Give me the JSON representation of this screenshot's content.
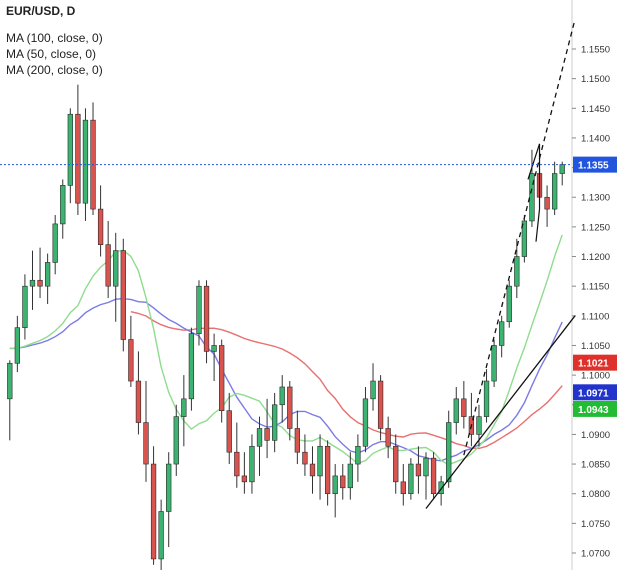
{
  "chart_data": {
    "type": "candlestick",
    "title": "EUR/USD, D",
    "legend": [
      {
        "name": "MA (100, close, 0)"
      },
      {
        "name": "MA (50, close, 0)"
      },
      {
        "name": "MA (200, close, 0)"
      }
    ],
    "ylim": [
      1.067,
      1.159
    ],
    "y_ticks": [
      "1.1550",
      "1.1500",
      "1.1450",
      "1.1400",
      "1.1350",
      "1.1300",
      "1.1250",
      "1.1200",
      "1.1150",
      "1.1100",
      "1.1050",
      "1.1000",
      "1.0950",
      "1.0900",
      "1.0850",
      "1.0800",
      "1.0750",
      "1.0700"
    ],
    "y_tick_values": [
      1.155,
      1.15,
      1.145,
      1.14,
      1.135,
      1.13,
      1.125,
      1.12,
      1.115,
      1.11,
      1.105,
      1.1,
      1.095,
      1.09,
      1.085,
      1.08,
      1.075,
      1.07
    ],
    "price_line": {
      "label": "1.1355",
      "value": 1.1355,
      "color": "#2255dd"
    },
    "ma_badges": [
      {
        "label": "1.1021",
        "value": 1.1021,
        "color": "#e0302c"
      },
      {
        "label": "1.0971",
        "value": 1.0971,
        "color": "#2233cc"
      },
      {
        "label": "1.0943",
        "value": 1.0943,
        "color": "#22bb33"
      }
    ],
    "colors": {
      "up": "#3cb371",
      "down": "#d9534f",
      "ma200": "#e87070",
      "ma100": "#7b7be6",
      "ma50": "#8fdc8f"
    },
    "candles": [
      [
        1.096,
        1.1025,
        1.089,
        1.102
      ],
      [
        1.102,
        1.11,
        1.1005,
        1.108
      ],
      [
        1.108,
        1.117,
        1.106,
        1.115
      ],
      [
        1.115,
        1.121,
        1.111,
        1.116
      ],
      [
        1.116,
        1.1215,
        1.113,
        1.115
      ],
      [
        1.115,
        1.1205,
        1.112,
        1.119
      ],
      [
        1.119,
        1.127,
        1.117,
        1.1255
      ],
      [
        1.1255,
        1.133,
        1.123,
        1.132
      ],
      [
        1.132,
        1.145,
        1.129,
        1.144
      ],
      [
        1.144,
        1.149,
        1.127,
        1.129
      ],
      [
        1.129,
        1.145,
        1.126,
        1.143
      ],
      [
        1.143,
        1.146,
        1.127,
        1.128
      ],
      [
        1.128,
        1.132,
        1.12,
        1.122
      ],
      [
        1.122,
        1.126,
        1.113,
        1.115
      ],
      [
        1.115,
        1.124,
        1.109,
        1.121
      ],
      [
        1.121,
        1.123,
        1.104,
        1.106
      ],
      [
        1.106,
        1.11,
        1.098,
        1.099
      ],
      [
        1.099,
        1.104,
        1.09,
        1.092
      ],
      [
        1.092,
        1.099,
        1.082,
        1.085
      ],
      [
        1.085,
        1.088,
        1.068,
        1.069
      ],
      [
        1.069,
        1.079,
        1.067,
        1.077
      ],
      [
        1.077,
        1.087,
        1.071,
        1.085
      ],
      [
        1.085,
        1.095,
        1.083,
        1.093
      ],
      [
        1.093,
        1.1,
        1.088,
        1.096
      ],
      [
        1.096,
        1.108,
        1.094,
        1.107
      ],
      [
        1.107,
        1.116,
        1.105,
        1.115
      ],
      [
        1.115,
        1.116,
        1.102,
        1.104
      ],
      [
        1.104,
        1.107,
        1.099,
        1.105
      ],
      [
        1.105,
        1.106,
        1.092,
        1.094
      ],
      [
        1.094,
        1.097,
        1.085,
        1.087
      ],
      [
        1.087,
        1.092,
        1.081,
        1.083
      ],
      [
        1.083,
        1.087,
        1.08,
        1.082
      ],
      [
        1.082,
        1.09,
        1.08,
        1.088
      ],
      [
        1.088,
        1.093,
        1.083,
        1.091
      ],
      [
        1.091,
        1.096,
        1.086,
        1.089
      ],
      [
        1.089,
        1.097,
        1.087,
        1.095
      ],
      [
        1.095,
        1.1,
        1.092,
        1.098
      ],
      [
        1.098,
        1.099,
        1.089,
        1.091
      ],
      [
        1.091,
        1.094,
        1.085,
        1.087
      ],
      [
        1.087,
        1.09,
        1.083,
        1.085
      ],
      [
        1.085,
        1.088,
        1.08,
        1.083
      ],
      [
        1.083,
        1.09,
        1.079,
        1.088
      ],
      [
        1.088,
        1.089,
        1.078,
        1.08
      ],
      [
        1.08,
        1.085,
        1.076,
        1.083
      ],
      [
        1.083,
        1.085,
        1.079,
        1.081
      ],
      [
        1.081,
        1.087,
        1.079,
        1.085
      ],
      [
        1.085,
        1.09,
        1.082,
        1.088
      ],
      [
        1.088,
        1.098,
        1.087,
        1.096
      ],
      [
        1.096,
        1.102,
        1.094,
        1.099
      ],
      [
        1.099,
        1.1,
        1.089,
        1.091
      ],
      [
        1.091,
        1.093,
        1.086,
        1.088
      ],
      [
        1.088,
        1.09,
        1.08,
        1.082
      ],
      [
        1.082,
        1.085,
        1.078,
        1.08
      ],
      [
        1.08,
        1.086,
        1.079,
        1.085
      ],
      [
        1.085,
        1.088,
        1.08,
        1.083
      ],
      [
        1.083,
        1.087,
        1.079,
        1.086
      ],
      [
        1.086,
        1.087,
        1.079,
        1.08
      ],
      [
        1.08,
        1.083,
        1.078,
        1.082
      ],
      [
        1.082,
        1.094,
        1.081,
        1.092
      ],
      [
        1.092,
        1.098,
        1.09,
        1.096
      ],
      [
        1.096,
        1.099,
        1.091,
        1.093
      ],
      [
        1.093,
        1.097,
        1.088,
        1.09
      ],
      [
        1.09,
        1.095,
        1.088,
        1.093
      ],
      [
        1.093,
        1.101,
        1.092,
        1.099
      ],
      [
        1.099,
        1.106,
        1.098,
        1.105
      ],
      [
        1.105,
        1.11,
        1.103,
        1.109
      ],
      [
        1.109,
        1.116,
        1.108,
        1.115
      ],
      [
        1.115,
        1.123,
        1.113,
        1.12
      ],
      [
        1.12,
        1.127,
        1.119,
        1.126
      ],
      [
        1.126,
        1.138,
        1.125,
        1.134
      ],
      [
        1.134,
        1.135,
        1.128,
        1.13
      ],
      [
        1.13,
        1.132,
        1.125,
        1.128
      ],
      [
        1.128,
        1.136,
        1.127,
        1.134
      ],
      [
        1.134,
        1.136,
        1.132,
        1.1355
      ]
    ]
  }
}
